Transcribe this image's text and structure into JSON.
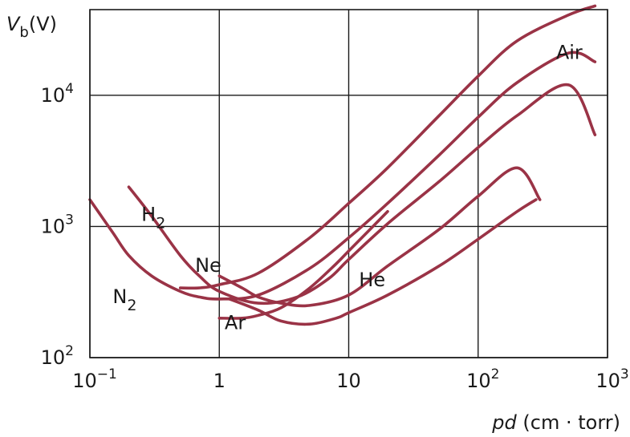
{
  "chart_data": {
    "type": "line",
    "title": "",
    "xlabel": {
      "italic": "pd",
      "rest": " (cm · torr)"
    },
    "ylabel": {
      "base": "V",
      "sub": "b",
      "rest": "(V)"
    },
    "xscale": "log",
    "yscale": "log",
    "xlim": [
      0.1,
      1000
    ],
    "ylim": [
      100,
      45000
    ],
    "grid": true,
    "line_color": "#9a3346",
    "x_ticks": [
      {
        "value": 0.1,
        "base": "10",
        "exp": "−1"
      },
      {
        "value": 1,
        "base": "1",
        "exp": ""
      },
      {
        "value": 10,
        "base": "10",
        "exp": ""
      },
      {
        "value": 100,
        "base": "10",
        "exp": "2"
      },
      {
        "value": 1000,
        "base": "10",
        "exp": "3"
      }
    ],
    "y_ticks": [
      {
        "value": 100,
        "base": "10",
        "exp": "2"
      },
      {
        "value": 1000,
        "base": "10",
        "exp": "3"
      },
      {
        "value": 10000,
        "base": "10",
        "exp": "4"
      }
    ],
    "series": [
      {
        "name": "Air",
        "label": {
          "base": "Air",
          "sub": ""
        },
        "label_at": [
          400,
          19000
        ],
        "points": [
          [
            0.5,
            340
          ],
          [
            0.7,
            340
          ],
          [
            1,
            360
          ],
          [
            2,
            440
          ],
          [
            5,
            820
          ],
          [
            10,
            1500
          ],
          [
            20,
            2800
          ],
          [
            50,
            7000
          ],
          [
            100,
            14000
          ],
          [
            200,
            26000
          ],
          [
            500,
            41000
          ],
          [
            800,
            48000
          ]
        ]
      },
      {
        "name": "N2",
        "label": {
          "base": "N",
          "sub": "2"
        },
        "label_at": [
          0.15,
          260
        ],
        "points": [
          [
            0.1,
            1600
          ],
          [
            0.15,
            900
          ],
          [
            0.2,
            600
          ],
          [
            0.3,
            420
          ],
          [
            0.5,
            320
          ],
          [
            0.7,
            290
          ],
          [
            1,
            280
          ],
          [
            2,
            300
          ],
          [
            5,
            480
          ],
          [
            10,
            820
          ],
          [
            20,
            1500
          ],
          [
            50,
            3500
          ],
          [
            100,
            6800
          ],
          [
            200,
            12500
          ],
          [
            500,
            21000
          ],
          [
            800,
            18000
          ]
        ]
      },
      {
        "name": "H2",
        "label": {
          "base": "H",
          "sub": "2"
        },
        "label_at": [
          0.25,
          1100
        ],
        "points": [
          [
            0.2,
            2000
          ],
          [
            0.3,
            1200
          ],
          [
            0.5,
            600
          ],
          [
            0.7,
            420
          ],
          [
            1,
            320
          ],
          [
            2,
            260
          ],
          [
            4,
            290
          ],
          [
            7,
            400
          ],
          [
            10,
            560
          ],
          [
            20,
            1050
          ],
          [
            50,
            2200
          ],
          [
            100,
            4000
          ],
          [
            200,
            7000
          ],
          [
            500,
            12000
          ],
          [
            800,
            5000
          ]
        ]
      },
      {
        "name": "Ne",
        "label": {
          "base": "Ne",
          "sub": ""
        },
        "label_at": [
          0.65,
          450
        ],
        "points": [
          [
            1,
            420
          ],
          [
            1.5,
            340
          ],
          [
            2,
            290
          ],
          [
            3,
            260
          ],
          [
            5,
            250
          ],
          [
            10,
            300
          ],
          [
            20,
            500
          ],
          [
            50,
            950
          ],
          [
            100,
            1700
          ],
          [
            200,
            2800
          ],
          [
            300,
            1600
          ]
        ]
      },
      {
        "name": "Ar",
        "label": {
          "base": "Ar",
          "sub": ""
        },
        "label_at": [
          1.1,
          165
        ],
        "points": [
          [
            1,
            200
          ],
          [
            1.5,
            200
          ],
          [
            2,
            210
          ],
          [
            3,
            240
          ],
          [
            5,
            340
          ],
          [
            8,
            520
          ],
          [
            10,
            650
          ],
          [
            20,
            1300
          ]
        ]
      },
      {
        "name": "He",
        "label": {
          "base": "He",
          "sub": ""
        },
        "label_at": [
          12,
          350
        ],
        "points": [
          [
            1.2,
            280
          ],
          [
            2,
            230
          ],
          [
            3,
            190
          ],
          [
            5,
            180
          ],
          [
            8,
            200
          ],
          [
            10,
            220
          ],
          [
            20,
            300
          ],
          [
            50,
            500
          ],
          [
            100,
            800
          ],
          [
            200,
            1300
          ],
          [
            280,
            1600
          ]
        ]
      }
    ]
  }
}
